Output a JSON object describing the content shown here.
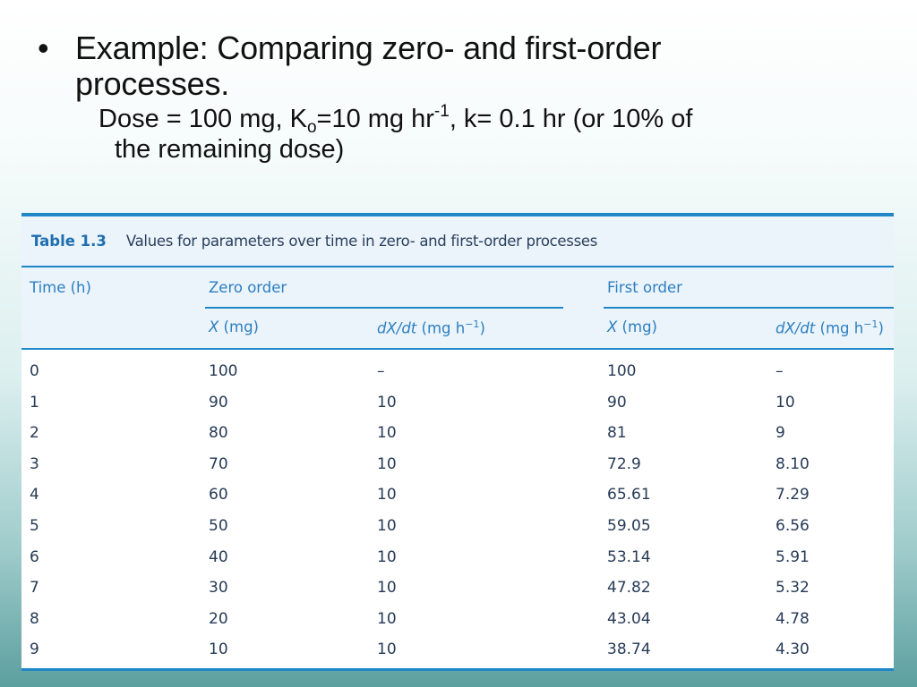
{
  "slide": {
    "bullet": "•",
    "heading_line1": "Example: Comparing zero- and first-order",
    "heading_line2": "processes.",
    "dose_line": {
      "part1": "Dose = 100 mg, K",
      "sub": "o",
      "part2": "=10 mg hr",
      "sup": "-1",
      "part3": ", k= 0.1 hr (or 10% of",
      "continuation": "the remaining dose)"
    }
  },
  "table": {
    "caption_label": "Table 1.3",
    "caption_text": "Values for parameters over time in zero- and first-order processes",
    "headers": {
      "time": "Time (h)",
      "zero_order": "Zero order",
      "first_order": "First order",
      "x_var": "X",
      "x_unit": " (mg)",
      "rate_var": "dX/dt",
      "rate_unit": " (mg h",
      "rate_sup": "−1",
      "rate_close": ")"
    },
    "rows": [
      {
        "time": "0",
        "zero_x": "100",
        "zero_rate": "–",
        "first_x": "100",
        "first_rate": "–"
      },
      {
        "time": "1",
        "zero_x": "90",
        "zero_rate": "10",
        "first_x": "90",
        "first_rate": "10"
      },
      {
        "time": "2",
        "zero_x": "80",
        "zero_rate": "10",
        "first_x": "81",
        "first_rate": "9"
      },
      {
        "time": "3",
        "zero_x": "70",
        "zero_rate": "10",
        "first_x": "72.9",
        "first_rate": "8.10"
      },
      {
        "time": "4",
        "zero_x": "60",
        "zero_rate": "10",
        "first_x": "65.61",
        "first_rate": "7.29"
      },
      {
        "time": "5",
        "zero_x": "50",
        "zero_rate": "10",
        "first_x": "59.05",
        "first_rate": "6.56"
      },
      {
        "time": "6",
        "zero_x": "40",
        "zero_rate": "10",
        "first_x": "53.14",
        "first_rate": "5.91"
      },
      {
        "time": "7",
        "zero_x": "30",
        "zero_rate": "10",
        "first_x": "47.82",
        "first_rate": "5.32"
      },
      {
        "time": "8",
        "zero_x": "20",
        "zero_rate": "10",
        "first_x": "43.04",
        "first_rate": "4.78"
      },
      {
        "time": "9",
        "zero_x": "10",
        "zero_rate": "10",
        "first_x": "38.74",
        "first_rate": "4.30"
      }
    ]
  },
  "colors": {
    "accent_blue": "#1f87c8",
    "header_band": "#ebf3fb",
    "header_text": "#2c7fc0",
    "body_text": "#263a56"
  }
}
